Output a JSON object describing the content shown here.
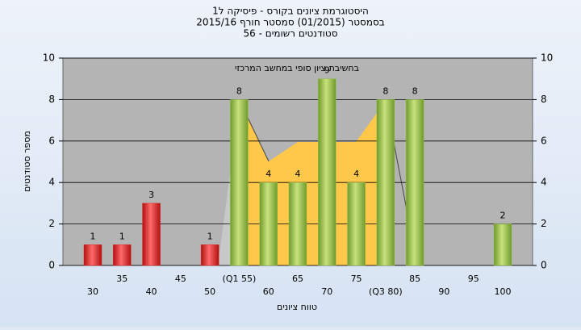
{
  "chart_data": {
    "type": "bar",
    "title": "היסטוגרמת ציונים בקורס - פיסיקה ל1",
    "subtitle": "בסמסטר (01/2015) סמסטר חורף 2015/16",
    "subtitle2": "סטודנטים רשומים - 56",
    "annotation": "בחשיבת ציון סופי במחשב המרכזי",
    "y_label": "מספר סטודנטים",
    "x_label": "טווח ציונים",
    "categories": [
      "30",
      "35",
      "40",
      "45",
      "50",
      "(Q1 55)",
      "60",
      "65",
      "70",
      "75",
      "(Q3 80)",
      "85",
      "90",
      "95",
      "100"
    ],
    "values": [
      1,
      1,
      3,
      0,
      1,
      8,
      4,
      4,
      9,
      4,
      8,
      8,
      0,
      0,
      2
    ],
    "colors": [
      "#e02828",
      "#e02828",
      "#e02828",
      "#e02828",
      "#e02828",
      "#8fc043",
      "#8fc043",
      "#8fc043",
      "#8fc043",
      "#8fc043",
      "#8fc043",
      "#8fc043",
      "#8fc043",
      "#8fc043",
      "#8fc043"
    ],
    "ylim": [
      0,
      10
    ],
    "yticks": [
      0,
      2,
      4,
      6,
      8,
      10
    ],
    "y2lim": [
      0,
      10
    ],
    "y2ticks": [
      0,
      2,
      4,
      6,
      8,
      10
    ],
    "grid": true
  }
}
